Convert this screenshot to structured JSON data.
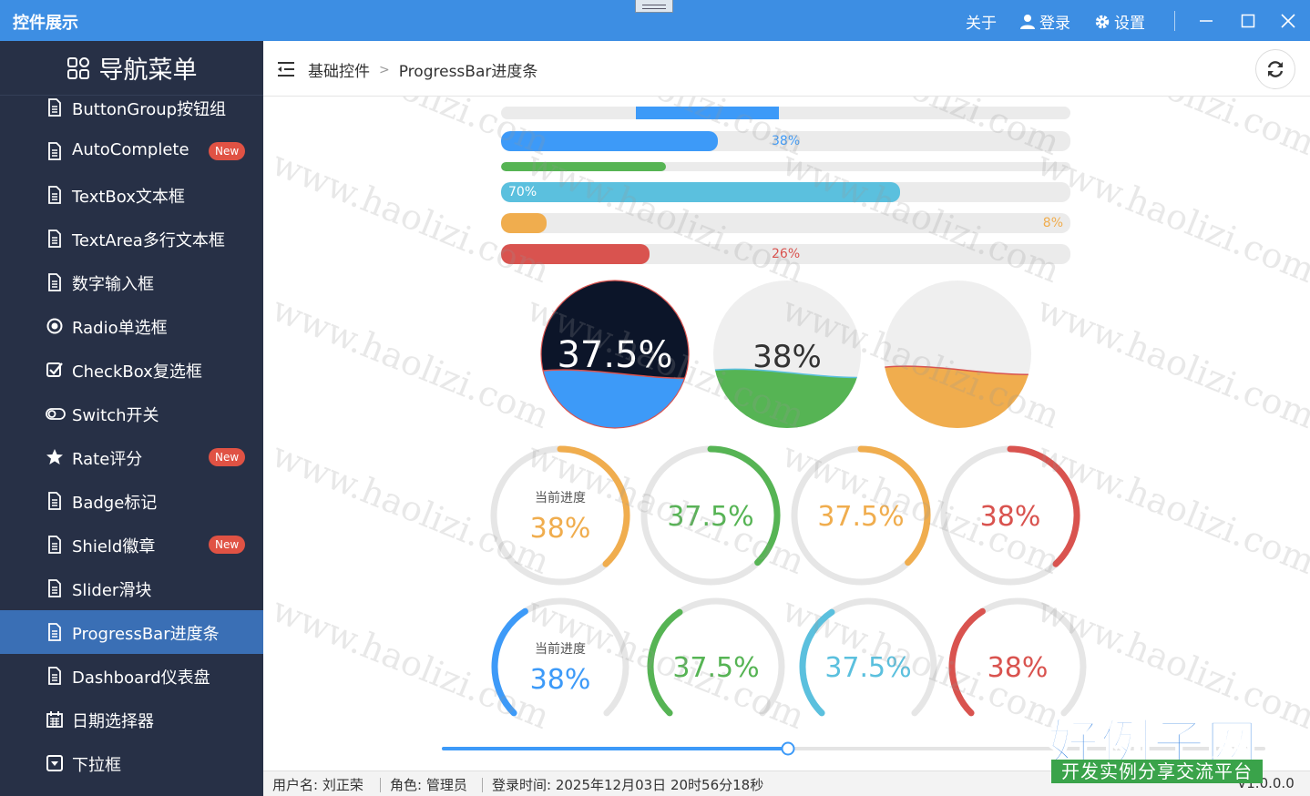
{
  "titlebar": {
    "app_title": "控件展示",
    "about": "关于",
    "login": "登录",
    "settings": "设置"
  },
  "sidebar": {
    "header": "导航菜单",
    "items": [
      {
        "label": "ButtonGroup按钮组",
        "icon": "document-icon",
        "badge": ""
      },
      {
        "label": "AutoComplete",
        "icon": "document-icon",
        "badge": "New"
      },
      {
        "label": "TextBox文本框",
        "icon": "document-icon",
        "badge": ""
      },
      {
        "label": "TextArea多行文本框",
        "icon": "document-icon",
        "badge": ""
      },
      {
        "label": "数字输入框",
        "icon": "document-icon",
        "badge": ""
      },
      {
        "label": "Radio单选框",
        "icon": "radio-icon",
        "badge": ""
      },
      {
        "label": "CheckBox复选框",
        "icon": "checkbox-icon",
        "badge": ""
      },
      {
        "label": "Switch开关",
        "icon": "toggle-icon",
        "badge": ""
      },
      {
        "label": "Rate评分",
        "icon": "star-icon",
        "badge": "New"
      },
      {
        "label": "Badge标记",
        "icon": "document-icon",
        "badge": ""
      },
      {
        "label": "Shield徽章",
        "icon": "document-icon",
        "badge": "New"
      },
      {
        "label": "Slider滑块",
        "icon": "document-icon",
        "badge": ""
      },
      {
        "label": "ProgressBar进度条",
        "icon": "document-icon",
        "badge": "",
        "active": true
      },
      {
        "label": "Dashboard仪表盘",
        "icon": "document-icon",
        "badge": ""
      },
      {
        "label": "日期选择器",
        "icon": "calendar-icon",
        "badge": ""
      },
      {
        "label": "下拉框",
        "icon": "dropdown-icon",
        "badge": ""
      }
    ]
  },
  "breadcrumb": {
    "root": "基础控件",
    "current": "ProgressBar进度条"
  },
  "bars": [
    {
      "value": 0,
      "text": "",
      "color": "#3d9af8",
      "indeterminate": true
    },
    {
      "value": 38,
      "text": "38%",
      "color": "#3d9af8",
      "text_color": "#3d9af8"
    },
    {
      "value": 29,
      "text": "",
      "color": "#56b454"
    },
    {
      "value": 70,
      "text": "70%",
      "color": "#5bc0de",
      "text_color": "#ffffff"
    },
    {
      "value": 8,
      "text": "8%",
      "color": "#f0ad4e",
      "text_color": "#f0ad4e"
    },
    {
      "value": 26,
      "text": "26%",
      "color": "#d9534f",
      "text_color": "#d9534f"
    }
  ],
  "waves": [
    {
      "text": "37.5%",
      "value": 37.5,
      "color": "#3d9af8",
      "bg": "#0c1529",
      "text_color": "#ffffff",
      "border": "#d9534f"
    },
    {
      "text": "38%",
      "value": 38,
      "color": "#56b454",
      "bg": "#efefef",
      "text_color": "#333333",
      "border": "#5bc0de"
    },
    {
      "text": "",
      "value": 40,
      "color": "#f0ad4e",
      "bg": "#efefef",
      "text_color": "#333333",
      "border": "#d9534f"
    }
  ],
  "rings_top": [
    {
      "label": "当前进度",
      "text": "38%",
      "value": 38,
      "color": "#f0ad4e"
    },
    {
      "label": "",
      "text": "37.5%",
      "value": 37.5,
      "color": "#56b454"
    },
    {
      "label": "",
      "text": "37.5%",
      "value": 37.5,
      "color": "#f0ad4e"
    },
    {
      "label": "",
      "text": "38%",
      "value": 38,
      "color": "#d9534f"
    }
  ],
  "rings_bottom": [
    {
      "label": "当前进度",
      "text": "38%",
      "value": 38,
      "color": "#3d9af8"
    },
    {
      "label": "",
      "text": "37.5%",
      "value": 37.5,
      "color": "#56b454"
    },
    {
      "label": "",
      "text": "37.5%",
      "value": 37.5,
      "color": "#5bc0de"
    },
    {
      "label": "",
      "text": "38%",
      "value": 38,
      "color": "#d9534f"
    }
  ],
  "slider": {
    "value": 42,
    "color": "#3d9af8"
  },
  "statusbar": {
    "user": "用户名: 刘正荣",
    "role": "角色: 管理员",
    "login_time": "登录时间: 2025年12月03日 20时56分18秒",
    "version": "V1.0.0.0"
  },
  "watermark": "www.haolizi.com",
  "logo": {
    "big": "好例子网",
    "small": "开发实例分享交流平台"
  }
}
